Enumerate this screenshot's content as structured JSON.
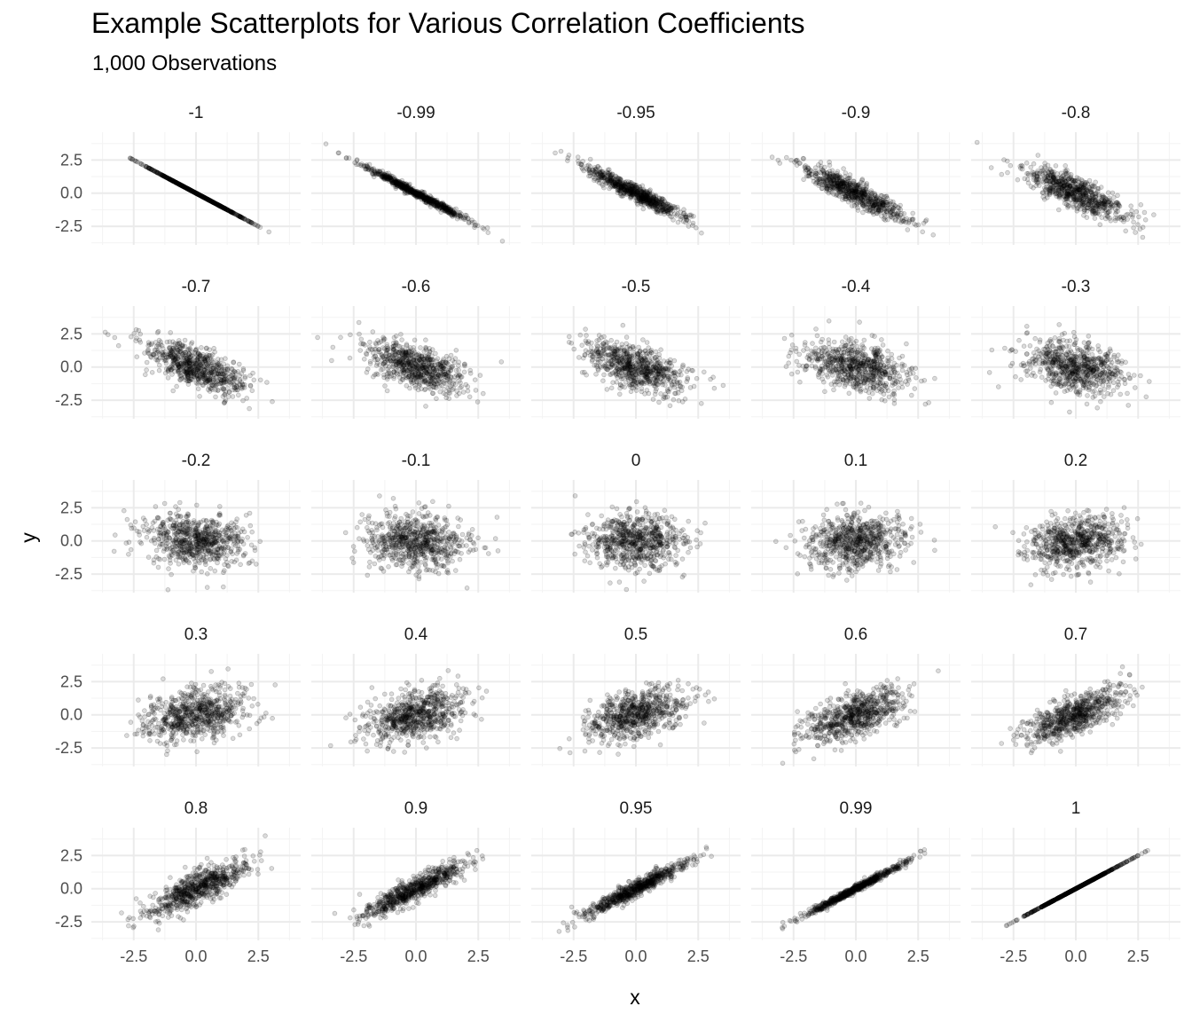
{
  "chart_data": {
    "type": "scatter",
    "title": "Example Scatterplots for Various Correlation Coefficients",
    "subtitle": "1,000 Observations",
    "xlabel": "x",
    "ylabel": "y",
    "facet_layout": {
      "rows": 5,
      "cols": 5
    },
    "n_observations": 1000,
    "xlim": [
      -4.2,
      4.2
    ],
    "ylim": [
      -3.9,
      4.6
    ],
    "x_ticks": [
      -2.5,
      0.0,
      2.5
    ],
    "x_tick_labels": [
      "-2.5",
      "0.0",
      "2.5"
    ],
    "y_ticks": [
      -2.5,
      0.0,
      2.5
    ],
    "y_tick_labels": [
      "-2.5",
      "0.0",
      "2.5"
    ],
    "grid": true,
    "point_color": "#000000",
    "panels": [
      {
        "label": "-1",
        "r": -1
      },
      {
        "label": "-0.99",
        "r": -0.99
      },
      {
        "label": "-0.95",
        "r": -0.95
      },
      {
        "label": "-0.9",
        "r": -0.9
      },
      {
        "label": "-0.8",
        "r": -0.8
      },
      {
        "label": "-0.7",
        "r": -0.7
      },
      {
        "label": "-0.6",
        "r": -0.6
      },
      {
        "label": "-0.5",
        "r": -0.5
      },
      {
        "label": "-0.4",
        "r": -0.4
      },
      {
        "label": "-0.3",
        "r": -0.3
      },
      {
        "label": "-0.2",
        "r": -0.2
      },
      {
        "label": "-0.1",
        "r": -0.1
      },
      {
        "label": "0",
        "r": 0
      },
      {
        "label": "0.1",
        "r": 0.1
      },
      {
        "label": "0.2",
        "r": 0.2
      },
      {
        "label": "0.3",
        "r": 0.3
      },
      {
        "label": "0.4",
        "r": 0.4
      },
      {
        "label": "0.5",
        "r": 0.5
      },
      {
        "label": "0.6",
        "r": 0.6
      },
      {
        "label": "0.7",
        "r": 0.7
      },
      {
        "label": "0.8",
        "r": 0.8
      },
      {
        "label": "0.9",
        "r": 0.9
      },
      {
        "label": "0.95",
        "r": 0.95
      },
      {
        "label": "0.99",
        "r": 0.99
      },
      {
        "label": "1",
        "r": 1
      }
    ]
  }
}
